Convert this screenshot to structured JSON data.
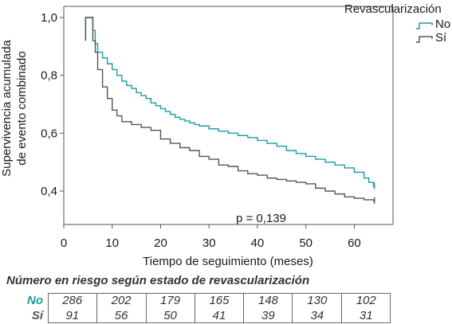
{
  "chart_data": {
    "type": "line",
    "xlabel": "Tiempo de seguimiento (meses)",
    "ylabel_lines": [
      "Supervivencia acumulada",
      "de evento combinado"
    ],
    "xlim": [
      0,
      68
    ],
    "ylim": [
      0.3,
      1.0
    ],
    "xticks": [
      "0",
      "10",
      "20",
      "30",
      "40",
      "50",
      "60"
    ],
    "yticks": [
      "0,4",
      "0,6",
      "0,8",
      "1,0"
    ],
    "legend_title": "Revascularización",
    "legend_position": "top-right",
    "annotation": "p = 0,139",
    "series": [
      {
        "name": "No",
        "color": "#1a9e9e",
        "x": [
          5,
          6,
          6.5,
          7,
          8,
          9,
          10,
          11,
          12,
          13,
          14,
          15,
          16,
          17,
          18,
          19,
          20,
          21,
          22,
          23,
          24,
          25,
          26,
          27,
          28,
          30,
          32,
          34,
          36,
          38,
          40,
          42,
          44,
          46,
          48,
          50,
          52,
          54,
          56,
          58,
          60,
          62,
          63,
          64
        ],
        "y": [
          1.0,
          0.955,
          0.91,
          0.88,
          0.86,
          0.84,
          0.82,
          0.8,
          0.78,
          0.765,
          0.755,
          0.74,
          0.73,
          0.72,
          0.705,
          0.695,
          0.685,
          0.675,
          0.665,
          0.655,
          0.648,
          0.642,
          0.636,
          0.63,
          0.625,
          0.615,
          0.607,
          0.6,
          0.592,
          0.585,
          0.575,
          0.565,
          0.555,
          0.54,
          0.53,
          0.52,
          0.51,
          0.5,
          0.49,
          0.48,
          0.465,
          0.445,
          0.43,
          0.415
        ]
      },
      {
        "name": "Sí",
        "color": "#555555",
        "x": [
          5,
          6,
          6.5,
          7,
          8,
          9,
          10,
          11,
          12,
          14,
          16,
          18,
          20,
          22,
          24,
          26,
          28,
          30,
          32,
          34,
          36,
          38,
          40,
          42,
          44,
          46,
          48,
          50,
          52,
          54,
          56,
          58,
          60,
          62,
          64
        ],
        "y": [
          1.0,
          0.92,
          0.88,
          0.82,
          0.76,
          0.72,
          0.68,
          0.66,
          0.64,
          0.63,
          0.62,
          0.61,
          0.58,
          0.565,
          0.55,
          0.54,
          0.52,
          0.51,
          0.49,
          0.485,
          0.47,
          0.46,
          0.455,
          0.445,
          0.44,
          0.435,
          0.43,
          0.425,
          0.41,
          0.4,
          0.39,
          0.38,
          0.375,
          0.37,
          0.365
        ]
      }
    ]
  },
  "risk_table": {
    "title": "Número en riesgo según estado de revascularización",
    "rows": [
      {
        "label": "No",
        "color": "#1a9e9e",
        "values": [
          "286",
          "202",
          "179",
          "165",
          "148",
          "130",
          "102"
        ]
      },
      {
        "label": "Sí",
        "color": "#555555",
        "values": [
          "91",
          "56",
          "50",
          "41",
          "39",
          "34",
          "31"
        ]
      }
    ]
  }
}
